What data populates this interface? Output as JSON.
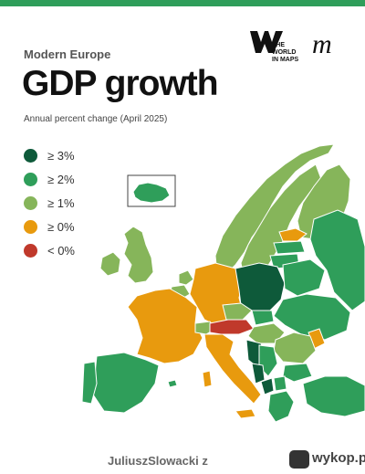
{
  "header": {
    "kicker": "Modern Europe",
    "title": "GDP growth",
    "description": "Annual percent change (April 2025)",
    "brand_text_line1": "THE",
    "brand_text_line2": "WORLD",
    "brand_text_line3": "IN MAPS",
    "brand_script_letter": "m"
  },
  "colors": {
    "top_bar": "#2f9e5a",
    "ge3": "#0e5a3a",
    "ge2": "#2f9e5a",
    "ge1": "#86b55a",
    "ge0": "#e89a0e",
    "lt0": "#c0392b",
    "nodata": "#dcdcdc",
    "sea": "#ffffff"
  },
  "legend": [
    {
      "label": "≥ 3%",
      "color": "#0e5a3a"
    },
    {
      "label": "≥ 2%",
      "color": "#2f9e5a"
    },
    {
      "label": "≥ 1%",
      "color": "#86b55a"
    },
    {
      "label": "≥ 0%",
      "color": "#e89a0e"
    },
    {
      "label": "< 0%",
      "color": "#c0392b"
    }
  ],
  "footer": {
    "user": "JuliuszSlowacki z",
    "site": "wykop.pl"
  }
}
